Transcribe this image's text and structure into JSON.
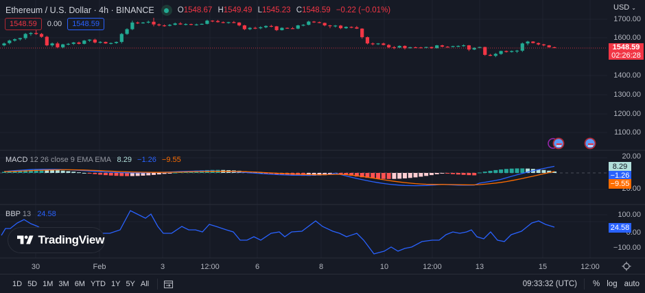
{
  "header": {
    "symbol": "Ethereum / U.S. Dollar · 4h · BINANCE",
    "status_dot_color": "#22ab94",
    "open_label": "O",
    "open": "1548.67",
    "high_label": "H",
    "high": "1549.49",
    "low_label": "L",
    "low": "1545.23",
    "close_label": "C",
    "close": "1548.59",
    "change": "−0.22 (−0.01%)",
    "sell_price": "1548.59",
    "spread": "0.00",
    "buy_price": "1548.59"
  },
  "price_axis": {
    "currency": "USD",
    "ticks": [
      "1700.00",
      "1600.00",
      "1400.00",
      "1300.00",
      "1200.00",
      "1100.00"
    ],
    "current_price": "1548.59",
    "countdown": "02:26:28"
  },
  "macd": {
    "name": "MACD",
    "params": "12 26 close 9 EMA EMA",
    "histogram": "8.29",
    "macd": "−1.26",
    "signal": "−9.55",
    "ticks": [
      "20.00",
      "−20.00"
    ]
  },
  "bbp": {
    "name": "BBP",
    "params": "13",
    "value": "24.58",
    "ticks": [
      "100.00",
      "0.00",
      "−100.00"
    ]
  },
  "watermark": "TradingView",
  "time_axis": [
    "30",
    "Feb",
    "3",
    "12:00",
    "6",
    "8",
    "10",
    "12:00",
    "13",
    "15",
    "12:00"
  ],
  "bottom_bar": {
    "ranges": [
      "1D",
      "5D",
      "1M",
      "3M",
      "6M",
      "YTD",
      "1Y",
      "5Y",
      "All"
    ],
    "clock": "09:33:32 (UTC)",
    "percent": "%",
    "log": "log",
    "auto": "auto"
  },
  "colors": {
    "up": "#22ab94",
    "down": "#f23645",
    "macd_line": "#2962ff",
    "signal_line": "#ff6d00",
    "background": "#161a25"
  },
  "chart_data": [
    {
      "type": "candlestick",
      "title": "Ethereum / U.S. Dollar · 4h · BINANCE",
      "ylabel": "USD",
      "ylim": [
        1050,
        1740
      ],
      "x_ticks": [
        "30",
        "Feb",
        "3",
        "12:00",
        "6",
        "8",
        "10",
        "12:00",
        "13",
        "15",
        "12:00"
      ],
      "current_price": 1548.59,
      "candles_ohlc_approx": [
        [
          1560,
          1575,
          1555,
          1570
        ],
        [
          1572,
          1590,
          1565,
          1585
        ],
        [
          1585,
          1596,
          1580,
          1592
        ],
        [
          1592,
          1600,
          1585,
          1598
        ],
        [
          1598,
          1625,
          1590,
          1620
        ],
        [
          1620,
          1630,
          1610,
          1625
        ],
        [
          1625,
          1640,
          1615,
          1620
        ],
        [
          1620,
          1625,
          1600,
          1605
        ],
        [
          1605,
          1610,
          1555,
          1560
        ],
        [
          1560,
          1575,
          1552,
          1570
        ],
        [
          1570,
          1578,
          1545,
          1550
        ],
        [
          1550,
          1568,
          1545,
          1565
        ],
        [
          1565,
          1572,
          1560,
          1568
        ],
        [
          1568,
          1578,
          1562,
          1575
        ],
        [
          1575,
          1580,
          1565,
          1568
        ],
        [
          1568,
          1588,
          1565,
          1585
        ],
        [
          1585,
          1592,
          1578,
          1590
        ],
        [
          1590,
          1595,
          1570,
          1575
        ],
        [
          1575,
          1582,
          1570,
          1578
        ],
        [
          1578,
          1580,
          1568,
          1570
        ],
        [
          1570,
          1575,
          1565,
          1572
        ],
        [
          1572,
          1580,
          1568,
          1578
        ],
        [
          1578,
          1625,
          1570,
          1620
        ],
        [
          1620,
          1650,
          1615,
          1645
        ],
        [
          1645,
          1690,
          1640,
          1680
        ],
        [
          1680,
          1685,
          1672,
          1678
        ],
        [
          1678,
          1683,
          1674,
          1680
        ],
        [
          1680,
          1690,
          1675,
          1684
        ],
        [
          1684,
          1705,
          1660,
          1670
        ],
        [
          1670,
          1675,
          1660,
          1665
        ],
        [
          1665,
          1670,
          1658,
          1663
        ],
        [
          1663,
          1672,
          1660,
          1668
        ],
        [
          1668,
          1680,
          1665,
          1675
        ],
        [
          1675,
          1682,
          1668,
          1670
        ],
        [
          1670,
          1676,
          1665,
          1672
        ],
        [
          1672,
          1674,
          1666,
          1668
        ],
        [
          1668,
          1674,
          1664,
          1670
        ],
        [
          1670,
          1675,
          1668,
          1673
        ],
        [
          1673,
          1695,
          1670,
          1690
        ],
        [
          1690,
          1692,
          1682,
          1688
        ],
        [
          1688,
          1694,
          1680,
          1682
        ],
        [
          1682,
          1686,
          1676,
          1678
        ],
        [
          1678,
          1684,
          1674,
          1682
        ],
        [
          1682,
          1688,
          1676,
          1680
        ],
        [
          1680,
          1682,
          1660,
          1665
        ],
        [
          1665,
          1668,
          1640,
          1645
        ],
        [
          1645,
          1656,
          1640,
          1652
        ],
        [
          1652,
          1658,
          1645,
          1650
        ],
        [
          1650,
          1660,
          1645,
          1655
        ],
        [
          1655,
          1665,
          1650,
          1662
        ],
        [
          1662,
          1668,
          1655,
          1660
        ],
        [
          1660,
          1662,
          1635,
          1640
        ],
        [
          1640,
          1655,
          1638,
          1652
        ],
        [
          1652,
          1654,
          1648,
          1650
        ],
        [
          1650,
          1656,
          1647,
          1648
        ],
        [
          1648,
          1668,
          1645,
          1665
        ],
        [
          1665,
          1672,
          1660,
          1668
        ],
        [
          1668,
          1690,
          1665,
          1685
        ],
        [
          1685,
          1688,
          1678,
          1682
        ],
        [
          1682,
          1685,
          1676,
          1678
        ],
        [
          1678,
          1680,
          1660,
          1665
        ],
        [
          1665,
          1668,
          1650,
          1662
        ],
        [
          1662,
          1667,
          1654,
          1664
        ],
        [
          1664,
          1667,
          1645,
          1650
        ],
        [
          1650,
          1660,
          1647,
          1657
        ],
        [
          1657,
          1660,
          1650,
          1655
        ],
        [
          1655,
          1662,
          1646,
          1648
        ],
        [
          1648,
          1650,
          1595,
          1603
        ],
        [
          1603,
          1606,
          1565,
          1570
        ],
        [
          1570,
          1575,
          1560,
          1566
        ],
        [
          1566,
          1572,
          1562,
          1570
        ],
        [
          1570,
          1574,
          1560,
          1562
        ],
        [
          1562,
          1566,
          1545,
          1550
        ],
        [
          1550,
          1556,
          1540,
          1548
        ],
        [
          1548,
          1560,
          1545,
          1557
        ],
        [
          1557,
          1560,
          1538,
          1545
        ],
        [
          1545,
          1552,
          1543,
          1550
        ],
        [
          1550,
          1553,
          1546,
          1549
        ],
        [
          1549,
          1552,
          1545,
          1547
        ],
        [
          1547,
          1553,
          1544,
          1551
        ],
        [
          1551,
          1553,
          1542,
          1545
        ],
        [
          1545,
          1562,
          1543,
          1560
        ],
        [
          1560,
          1563,
          1550,
          1553
        ],
        [
          1553,
          1556,
          1550,
          1552
        ],
        [
          1552,
          1558,
          1549,
          1556
        ],
        [
          1556,
          1560,
          1550,
          1557
        ],
        [
          1557,
          1565,
          1553,
          1560
        ],
        [
          1560,
          1562,
          1530,
          1538
        ],
        [
          1538,
          1550,
          1535,
          1547
        ],
        [
          1547,
          1553,
          1545,
          1551
        ],
        [
          1551,
          1553,
          1505,
          1510
        ],
        [
          1510,
          1515,
          1503,
          1505
        ],
        [
          1505,
          1520,
          1498,
          1515
        ],
        [
          1515,
          1532,
          1510,
          1530
        ],
        [
          1530,
          1533,
          1522,
          1525
        ],
        [
          1525,
          1533,
          1522,
          1530
        ],
        [
          1530,
          1536,
          1520,
          1532
        ],
        [
          1532,
          1575,
          1525,
          1570
        ],
        [
          1570,
          1584,
          1560,
          1580
        ],
        [
          1580,
          1582,
          1570,
          1572
        ],
        [
          1572,
          1575,
          1560,
          1565
        ],
        [
          1565,
          1568,
          1555,
          1560
        ],
        [
          1560,
          1562,
          1548,
          1550
        ],
        [
          1550,
          1553,
          1546,
          1549
        ]
      ]
    },
    {
      "type": "bar+line",
      "title": "MACD 12 26 close 9 EMA EMA",
      "ylim": [
        -45,
        35
      ],
      "y_ticks": [
        20,
        -20
      ],
      "last_values": {
        "histogram": 8.29,
        "macd": -1.26,
        "signal": -9.55
      }
    },
    {
      "type": "line",
      "title": "BBP 13",
      "ylim": [
        -140,
        160
      ],
      "y_ticks": [
        100,
        0,
        -100
      ],
      "last_value": 24.58
    }
  ]
}
